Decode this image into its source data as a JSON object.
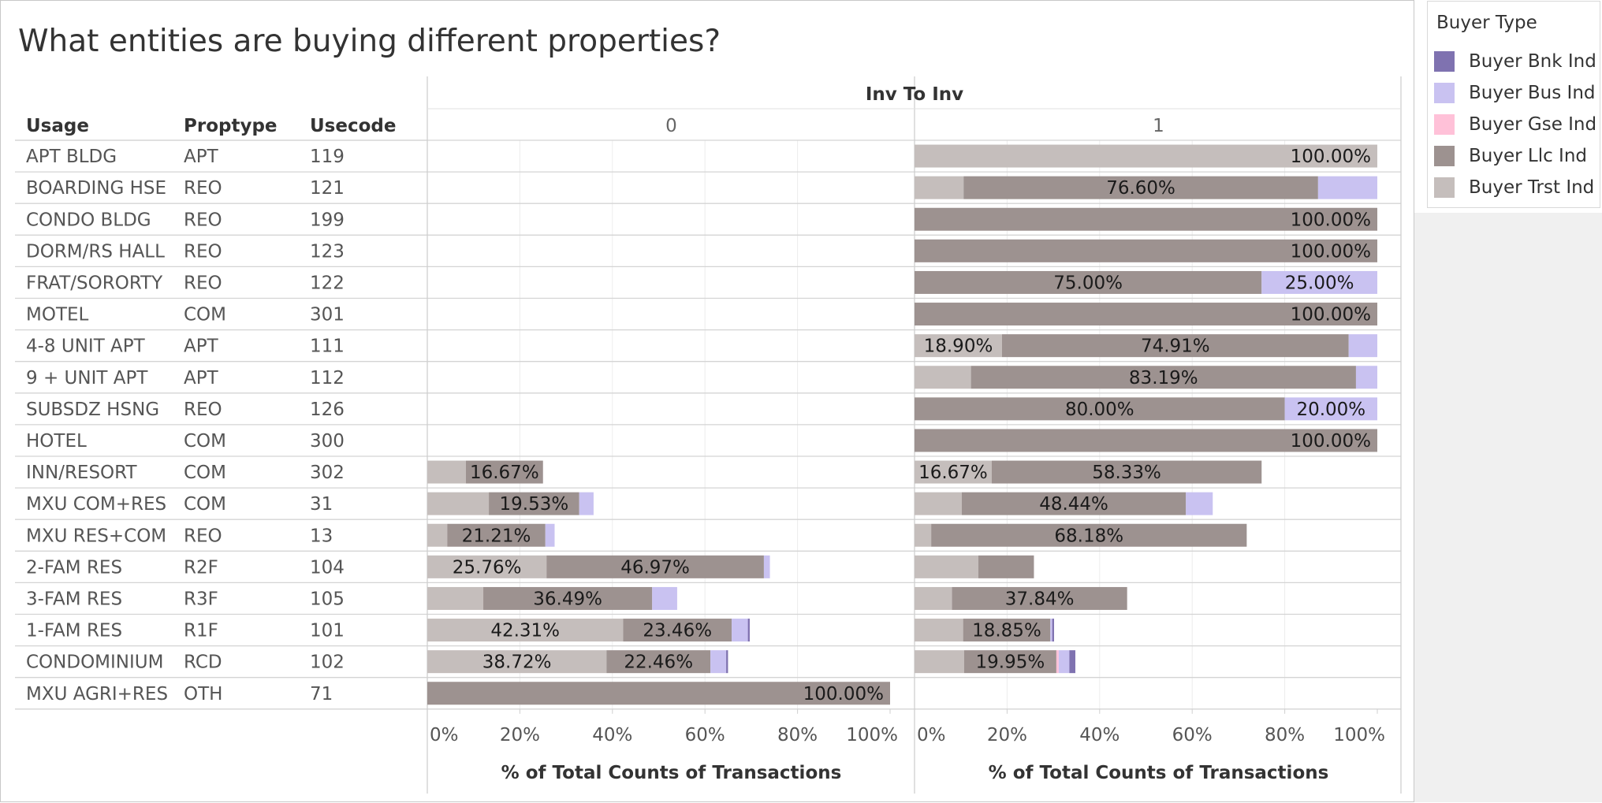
{
  "title": "What entities are buying different properties?",
  "colors": {
    "Buyer Bnk Ind": "#7f72b0",
    "Buyer Bus Ind": "#c9c2f1",
    "Buyer Gse Ind": "#ffc1d8",
    "Buyer Llc Ind": "#9d9290",
    "Buyer Trst Ind": "#c5bebc"
  },
  "legend": {
    "title": "Buyer Type",
    "items": [
      "Buyer Bnk Ind",
      "Buyer Bus Ind",
      "Buyer Gse Ind",
      "Buyer Llc Ind",
      "Buyer Trst Ind"
    ]
  },
  "chart_data": {
    "type": "bar",
    "orientation": "horizontal",
    "stacked": true,
    "title": "What entities are buying different properties?",
    "column_header": "Inv To Inv",
    "row_headers": [
      "Usage",
      "Proptype",
      "Usecode"
    ],
    "xlabel": "% of Total Counts of Transactions",
    "xlim": [
      0,
      100
    ],
    "x_ticks": [
      "0%",
      "20%",
      "40%",
      "60%",
      "80%",
      "100%"
    ],
    "grid": true,
    "legend_position": "right",
    "stack_order": [
      "Buyer Trst Ind",
      "Buyer Llc Ind",
      "Buyer Gse Ind",
      "Buyer Bus Ind",
      "Buyer Bnk Ind"
    ],
    "rows": [
      {
        "usage": "APT BLDG",
        "proptype": "APT",
        "usecode": "119"
      },
      {
        "usage": "BOARDING HSE",
        "proptype": "REO",
        "usecode": "121"
      },
      {
        "usage": "CONDO BLDG",
        "proptype": "REO",
        "usecode": "199"
      },
      {
        "usage": "DORM/RS HALL",
        "proptype": "REO",
        "usecode": "123"
      },
      {
        "usage": "FRAT/SORORTY",
        "proptype": "REO",
        "usecode": "122"
      },
      {
        "usage": "MOTEL",
        "proptype": "COM",
        "usecode": "301"
      },
      {
        "usage": "4-8 UNIT APT",
        "proptype": "APT",
        "usecode": "111"
      },
      {
        "usage": "9 + UNIT APT",
        "proptype": "APT",
        "usecode": "112"
      },
      {
        "usage": "SUBSDZ HSNG",
        "proptype": "REO",
        "usecode": "126"
      },
      {
        "usage": "HOTEL",
        "proptype": "COM",
        "usecode": "300"
      },
      {
        "usage": "INN/RESORT",
        "proptype": "COM",
        "usecode": "302"
      },
      {
        "usage": "MXU COM+RES",
        "proptype": "COM",
        "usecode": "31"
      },
      {
        "usage": "MXU RES+COM",
        "proptype": "REO",
        "usecode": "13"
      },
      {
        "usage": "2-FAM RES",
        "proptype": "R2F",
        "usecode": "104"
      },
      {
        "usage": "3-FAM RES",
        "proptype": "R3F",
        "usecode": "105"
      },
      {
        "usage": "1-FAM RES",
        "proptype": "R1F",
        "usecode": "101"
      },
      {
        "usage": "CONDOMINIUM",
        "proptype": "RCD",
        "usecode": "102"
      },
      {
        "usage": "MXU AGRI+RES",
        "proptype": "OTH",
        "usecode": "71"
      }
    ],
    "panels": [
      {
        "name": "0",
        "bars": [
          [],
          [],
          [],
          [],
          [],
          [],
          [],
          [],
          [],
          [],
          [
            {
              "type": "Buyer Trst Ind",
              "value": 8.33
            },
            {
              "type": "Buyer Llc Ind",
              "value": 16.67,
              "label": "16.67%"
            }
          ],
          [
            {
              "type": "Buyer Trst Ind",
              "value": 13.3
            },
            {
              "type": "Buyer Llc Ind",
              "value": 19.53,
              "label": "19.53%"
            },
            {
              "type": "Buyer Bus Ind",
              "value": 3.1
            }
          ],
          [
            {
              "type": "Buyer Trst Ind",
              "value": 4.3
            },
            {
              "type": "Buyer Llc Ind",
              "value": 21.21,
              "label": "21.21%"
            },
            {
              "type": "Buyer Bus Ind",
              "value": 2.0
            }
          ],
          [
            {
              "type": "Buyer Trst Ind",
              "value": 25.76,
              "label": "25.76%"
            },
            {
              "type": "Buyer Llc Ind",
              "value": 46.97,
              "label": "46.97%"
            },
            {
              "type": "Buyer Bus Ind",
              "value": 1.3
            }
          ],
          [
            {
              "type": "Buyer Trst Ind",
              "value": 12.1
            },
            {
              "type": "Buyer Llc Ind",
              "value": 36.49,
              "label": "36.49%"
            },
            {
              "type": "Buyer Bus Ind",
              "value": 5.4
            }
          ],
          [
            {
              "type": "Buyer Trst Ind",
              "value": 42.31,
              "label": "42.31%"
            },
            {
              "type": "Buyer Llc Ind",
              "value": 23.46,
              "label": "23.46%"
            },
            {
              "type": "Buyer Bus Ind",
              "value": 3.5
            },
            {
              "type": "Buyer Bnk Ind",
              "value": 0.4
            }
          ],
          [
            {
              "type": "Buyer Trst Ind",
              "value": 38.72,
              "label": "38.72%"
            },
            {
              "type": "Buyer Llc Ind",
              "value": 22.46,
              "label": "22.46%"
            },
            {
              "type": "Buyer Bus Ind",
              "value": 3.4
            },
            {
              "type": "Buyer Bnk Ind",
              "value": 0.4
            }
          ],
          [
            {
              "type": "Buyer Llc Ind",
              "value": 100.0,
              "label": "100.00%"
            }
          ]
        ]
      },
      {
        "name": "1",
        "bars": [
          [
            {
              "type": "Buyer Trst Ind",
              "value": 100.0,
              "label": "100.00%"
            }
          ],
          [
            {
              "type": "Buyer Trst Ind",
              "value": 10.6
            },
            {
              "type": "Buyer Llc Ind",
              "value": 76.6,
              "label": "76.60%"
            },
            {
              "type": "Buyer Bus Ind",
              "value": 12.8
            }
          ],
          [
            {
              "type": "Buyer Llc Ind",
              "value": 100.0,
              "label": "100.00%"
            }
          ],
          [
            {
              "type": "Buyer Llc Ind",
              "value": 100.0,
              "label": "100.00%"
            }
          ],
          [
            {
              "type": "Buyer Llc Ind",
              "value": 75.0,
              "label": "75.00%"
            },
            {
              "type": "Buyer Bus Ind",
              "value": 25.0,
              "label": "25.00%"
            }
          ],
          [
            {
              "type": "Buyer Llc Ind",
              "value": 100.0,
              "label": "100.00%"
            }
          ],
          [
            {
              "type": "Buyer Trst Ind",
              "value": 18.9,
              "label": "18.90%"
            },
            {
              "type": "Buyer Llc Ind",
              "value": 74.91,
              "label": "74.91%"
            },
            {
              "type": "Buyer Bus Ind",
              "value": 6.19
            }
          ],
          [
            {
              "type": "Buyer Trst Ind",
              "value": 12.2
            },
            {
              "type": "Buyer Llc Ind",
              "value": 83.19,
              "label": "83.19%"
            },
            {
              "type": "Buyer Bus Ind",
              "value": 4.61
            }
          ],
          [
            {
              "type": "Buyer Llc Ind",
              "value": 80.0,
              "label": "80.00%"
            },
            {
              "type": "Buyer Bus Ind",
              "value": 20.0,
              "label": "20.00%"
            }
          ],
          [
            {
              "type": "Buyer Llc Ind",
              "value": 100.0,
              "label": "100.00%"
            }
          ],
          [
            {
              "type": "Buyer Trst Ind",
              "value": 16.67,
              "label": "16.67%"
            },
            {
              "type": "Buyer Llc Ind",
              "value": 58.33,
              "label": "58.33%"
            }
          ],
          [
            {
              "type": "Buyer Trst Ind",
              "value": 10.2
            },
            {
              "type": "Buyer Llc Ind",
              "value": 48.44,
              "label": "48.44%"
            },
            {
              "type": "Buyer Bus Ind",
              "value": 5.8
            }
          ],
          [
            {
              "type": "Buyer Trst Ind",
              "value": 3.6
            },
            {
              "type": "Buyer Llc Ind",
              "value": 68.18,
              "label": "68.18%"
            }
          ],
          [
            {
              "type": "Buyer Trst Ind",
              "value": 13.8
            },
            {
              "type": "Buyer Llc Ind",
              "value": 12.0
            }
          ],
          [
            {
              "type": "Buyer Trst Ind",
              "value": 8.1
            },
            {
              "type": "Buyer Llc Ind",
              "value": 37.84,
              "label": "37.84%"
            }
          ],
          [
            {
              "type": "Buyer Trst Ind",
              "value": 10.5
            },
            {
              "type": "Buyer Llc Ind",
              "value": 18.85,
              "label": "18.85%"
            },
            {
              "type": "Buyer Bus Ind",
              "value": 0.4
            },
            {
              "type": "Buyer Bnk Ind",
              "value": 0.4
            }
          ],
          [
            {
              "type": "Buyer Trst Ind",
              "value": 10.7
            },
            {
              "type": "Buyer Llc Ind",
              "value": 19.95,
              "label": "19.95%"
            },
            {
              "type": "Buyer Gse Ind",
              "value": 0.5
            },
            {
              "type": "Buyer Bus Ind",
              "value": 2.3
            },
            {
              "type": "Buyer Bnk Ind",
              "value": 1.3
            }
          ],
          []
        ]
      }
    ]
  }
}
